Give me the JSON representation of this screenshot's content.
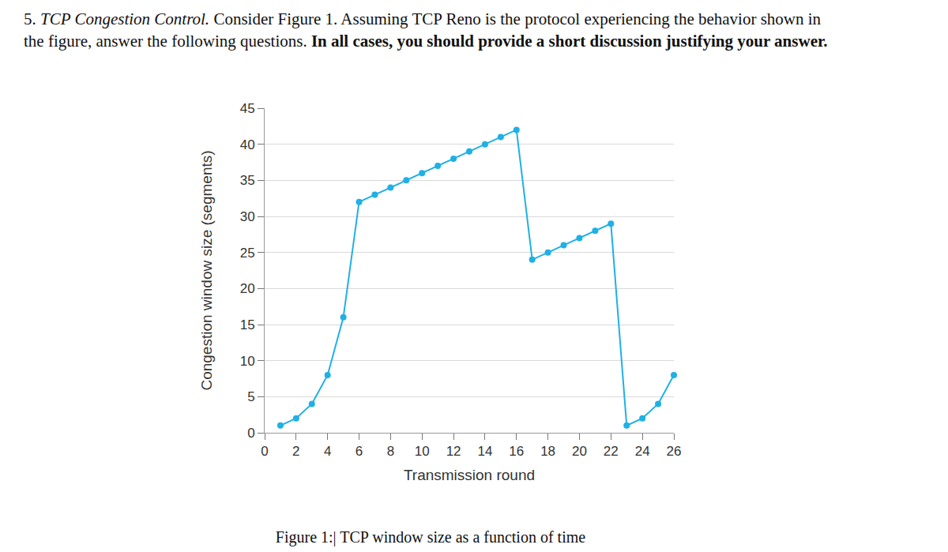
{
  "header": {
    "number": "5.",
    "title": "TCP Congestion Control.",
    "text": "Consider Figure 1. Assuming TCP Reno is the protocol experiencing the behavior shown in the figure, answer the following questions.",
    "emphasis": "In all cases, you should provide a short discussion justifying your answer."
  },
  "chart_data": {
    "type": "line",
    "x_label": "Transmission round",
    "y_label": "Congestion window size (segments)",
    "x": [
      1,
      2,
      3,
      4,
      5,
      6,
      7,
      8,
      9,
      10,
      11,
      12,
      13,
      14,
      15,
      16,
      17,
      18,
      19,
      20,
      21,
      22,
      23,
      24,
      25,
      26
    ],
    "values": [
      1,
      2,
      4,
      8,
      16,
      32,
      33,
      34,
      35,
      36,
      37,
      38,
      39,
      40,
      41,
      42,
      24,
      25,
      26,
      27,
      28,
      29,
      1,
      2,
      4,
      8
    ],
    "color": "#1fb0e6",
    "marker": "circle",
    "xlim": [
      0,
      26
    ],
    "xticks": [
      0,
      2,
      4,
      6,
      8,
      10,
      12,
      14,
      16,
      18,
      20,
      22,
      24,
      26
    ],
    "ylim": [
      0,
      45
    ],
    "yticks": [
      0,
      5,
      10,
      15,
      20,
      25,
      30,
      35,
      40,
      45
    ],
    "grid": true
  },
  "caption": "Figure 1:| TCP window size as a function of time"
}
